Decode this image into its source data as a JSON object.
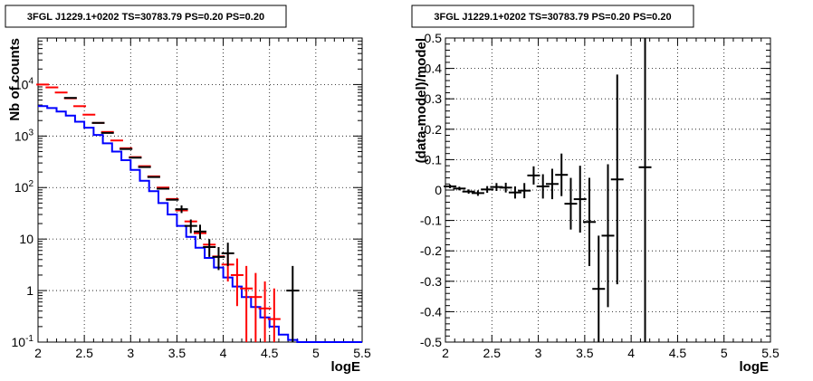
{
  "chart_data": [
    {
      "type": "histogram",
      "title": "3FGL J1229.1+0202 TS=30783.79 PS=0.20 PS=0.20",
      "xlabel": "logE",
      "ylabel": "Nb of counts",
      "xlim": [
        2,
        5.5
      ],
      "ylim": [
        0.1,
        80000
      ],
      "ylog": true,
      "grid": true,
      "x_ticks": [
        "2",
        "2.5",
        "3",
        "3.5",
        "4",
        "4.5",
        "5",
        "5.5"
      ],
      "y_ticks": [
        "10^-1",
        "1",
        "10",
        "10^2",
        "10^3",
        "10^4"
      ],
      "bin_edges": [
        2.0,
        2.1,
        2.2,
        2.3,
        2.4,
        2.5,
        2.6,
        2.7,
        2.8,
        2.9,
        3.0,
        3.1,
        3.2,
        3.3,
        3.4,
        3.5,
        3.6,
        3.7,
        3.8,
        3.9,
        4.0,
        4.1,
        4.2,
        4.3,
        4.4,
        4.5,
        4.6,
        4.7,
        4.8,
        4.9,
        5.0,
        5.1,
        5.2,
        5.3,
        5.4,
        5.5
      ],
      "series": [
        {
          "color": "#0000ff",
          "style": "step",
          "values": [
            3800,
            3500,
            3000,
            2500,
            1900,
            1450,
            1050,
            720,
            500,
            340,
            220,
            135,
            85,
            50,
            30,
            18,
            11,
            6.8,
            4.3,
            2.8,
            1.8,
            1.2,
            0.75,
            0.48,
            0.3,
            0.2,
            0.14,
            0.11,
            0.1,
            0.1,
            0.1,
            0.1,
            0.1,
            0.1,
            0.1
          ]
        },
        {
          "color": "#ff0000",
          "style": "points-with-errors",
          "points": [
            {
              "x": 2.05,
              "y": 10000
            },
            {
              "x": 2.15,
              "y": 8800
            },
            {
              "x": 2.25,
              "y": 7000
            },
            {
              "x": 2.35,
              "y": 5400
            },
            {
              "x": 2.45,
              "y": 3800
            },
            {
              "x": 2.55,
              "y": 2600
            },
            {
              "x": 2.65,
              "y": 1800
            },
            {
              "x": 2.75,
              "y": 1200
            },
            {
              "x": 2.85,
              "y": 820
            },
            {
              "x": 2.95,
              "y": 580
            },
            {
              "x": 3.05,
              "y": 390
            },
            {
              "x": 3.15,
              "y": 260
            },
            {
              "x": 3.25,
              "y": 165
            },
            {
              "x": 3.35,
              "y": 100
            },
            {
              "x": 3.45,
              "y": 60
            },
            {
              "x": 3.55,
              "y": 36
            },
            {
              "x": 3.65,
              "y": 22
            },
            {
              "x": 3.75,
              "y": 13
            },
            {
              "x": 3.85,
              "y": 7.8
            },
            {
              "x": 3.95,
              "y": 4.6
            },
            {
              "x": 4.05,
              "y": 3.2,
              "err_low": 1.5,
              "err_high": 5.5
            },
            {
              "x": 4.15,
              "y": 2.0,
              "err_low": 0.5,
              "err_high": 4.2
            },
            {
              "x": 4.25,
              "y": 1.1,
              "err_low": 0.1,
              "err_high": 3.0
            },
            {
              "x": 4.35,
              "y": 0.75,
              "err_low": 0.1,
              "err_high": 2.2
            },
            {
              "x": 4.45,
              "y": 0.45,
              "err_low": 0.1,
              "err_high": 1.5
            },
            {
              "x": 4.55,
              "y": 0.28,
              "err_low": 0.1,
              "err_high": 1.1
            }
          ]
        },
        {
          "color": "#000000",
          "style": "points-with-errors",
          "points": [
            {
              "x": 2.35,
              "y": 5500
            },
            {
              "x": 2.65,
              "y": 1800
            },
            {
              "x": 2.75,
              "y": 1150
            },
            {
              "x": 2.95,
              "y": 560
            },
            {
              "x": 3.05,
              "y": 380
            },
            {
              "x": 3.15,
              "y": 250
            },
            {
              "x": 3.25,
              "y": 160
            },
            {
              "x": 3.35,
              "y": 95
            },
            {
              "x": 3.45,
              "y": 58
            },
            {
              "x": 3.55,
              "y": 38,
              "err_low": 32,
              "err_high": 45
            },
            {
              "x": 3.65,
              "y": 18,
              "err_low": 13,
              "err_high": 24
            },
            {
              "x": 3.75,
              "y": 14,
              "err_low": 10,
              "err_high": 19
            },
            {
              "x": 3.85,
              "y": 7,
              "err_low": 4.5,
              "err_high": 10
            },
            {
              "x": 3.95,
              "y": 4.5,
              "err_low": 2.5,
              "err_high": 7
            },
            {
              "x": 4.05,
              "y": 5.3,
              "err_low": 3,
              "err_high": 8.5
            },
            {
              "x": 4.75,
              "y": 1.0,
              "err_low": 0.1,
              "err_high": 3.0
            }
          ]
        }
      ]
    },
    {
      "type": "scatter",
      "title": "3FGL J1229.1+0202 TS=30783.79 PS=0.20 PS=0.20",
      "xlabel": "logE",
      "ylabel": "(data-model)/model",
      "xlim": [
        2,
        5.5
      ],
      "ylim": [
        -0.5,
        0.5
      ],
      "grid": true,
      "x_ticks": [
        "2",
        "2.5",
        "3",
        "3.5",
        "4",
        "4.5",
        "5",
        "5.5"
      ],
      "y_ticks": [
        "-0.5",
        "-0.4",
        "-0.3",
        "-0.2",
        "-0.1",
        "0",
        "0.1",
        "0.2",
        "0.3",
        "0.4",
        "0.5"
      ],
      "points": [
        {
          "x": 2.05,
          "y": 0.012,
          "err": 0.006
        },
        {
          "x": 2.15,
          "y": 0.005,
          "err": 0.006
        },
        {
          "x": 2.25,
          "y": -0.005,
          "err": 0.007
        },
        {
          "x": 2.35,
          "y": -0.01,
          "err": 0.009
        },
        {
          "x": 2.45,
          "y": 0.002,
          "err": 0.011
        },
        {
          "x": 2.55,
          "y": 0.01,
          "err": 0.013
        },
        {
          "x": 2.65,
          "y": 0.008,
          "err": 0.016
        },
        {
          "x": 2.75,
          "y": -0.008,
          "err": 0.02
        },
        {
          "x": 2.85,
          "y": -0.002,
          "err": 0.025
        },
        {
          "x": 2.95,
          "y": 0.048,
          "err": 0.03
        },
        {
          "x": 3.05,
          "y": 0.012,
          "err": 0.04
        },
        {
          "x": 3.15,
          "y": 0.02,
          "err": 0.05
        },
        {
          "x": 3.25,
          "y": 0.05,
          "err": 0.07
        },
        {
          "x": 3.35,
          "y": -0.045,
          "err": 0.085
        },
        {
          "x": 3.45,
          "y": -0.03,
          "err": 0.11
        },
        {
          "x": 3.55,
          "y": -0.105,
          "err": 0.145
        },
        {
          "x": 3.65,
          "y": -0.325,
          "err": 0.175
        },
        {
          "x": 3.75,
          "y": -0.15,
          "err": 0.235
        },
        {
          "x": 3.85,
          "y": 0.035,
          "err": 0.345
        },
        {
          "x": 4.15,
          "y": 0.075,
          "err": 0.6
        }
      ]
    }
  ]
}
